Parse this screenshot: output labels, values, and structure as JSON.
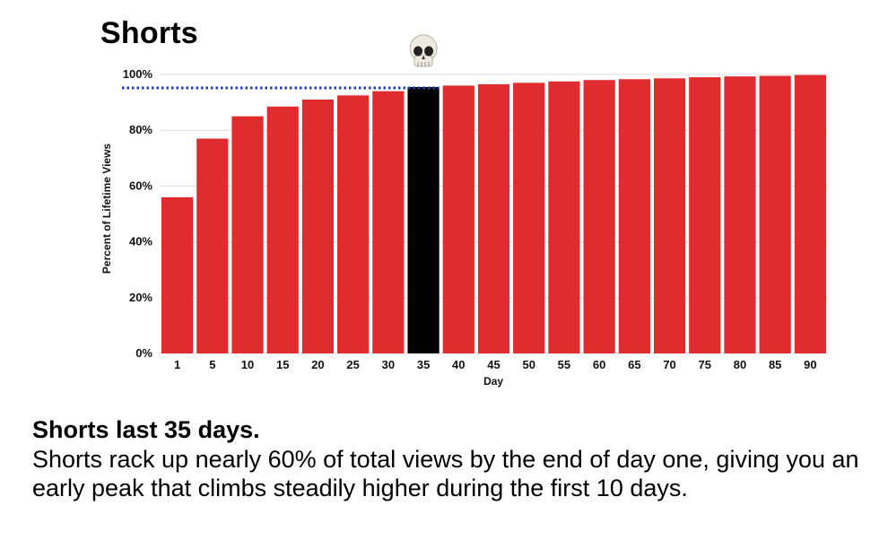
{
  "chart_data": {
    "type": "bar",
    "title": "Shorts",
    "xlabel": "Day",
    "ylabel": "Percent of Lifetime Views",
    "ylim": [
      0,
      100
    ],
    "y_ticks": [
      "0%",
      "20%",
      "40%",
      "60%",
      "80%",
      "100%"
    ],
    "categories": [
      "1",
      "5",
      "10",
      "15",
      "20",
      "25",
      "30",
      "35",
      "40",
      "45",
      "50",
      "55",
      "60",
      "65",
      "70",
      "75",
      "80",
      "85",
      "90"
    ],
    "values": [
      56,
      77,
      85,
      88.5,
      91,
      92.5,
      94,
      95.5,
      96,
      96.5,
      97,
      97.5,
      98,
      98.3,
      98.6,
      99,
      99.3,
      99.5,
      99.8
    ],
    "highlight_category": "35",
    "reference_line_value": 95.5,
    "grid": "horizontal",
    "marker_icon": "skull-icon",
    "colors": {
      "bar": "#e02b2f",
      "highlight": "#000000",
      "reference_line": "#1f3fb0",
      "grid": "#dddddd"
    }
  },
  "caption": {
    "headline": "Shorts last 35 days.",
    "body": "Shorts rack up nearly 60% of total views by the end of day one, giving you an early peak that climbs steadily higher during the first 10 days."
  }
}
